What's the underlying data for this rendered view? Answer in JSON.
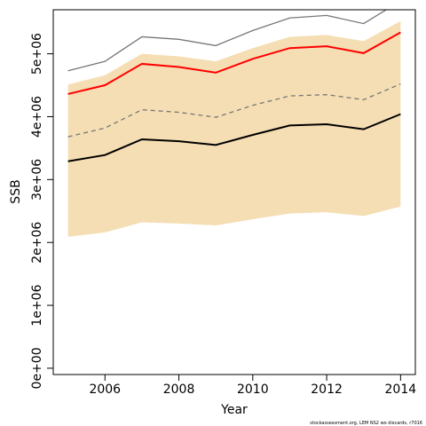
{
  "chart_data": {
    "type": "line",
    "title": "",
    "xlabel": "Year",
    "ylabel": "SSB",
    "xlim": [
      2004.6,
      2014.4
    ],
    "ylim": [
      -100000,
      5700000
    ],
    "x_ticks": [
      2006,
      2008,
      2010,
      2012,
      2014
    ],
    "x_tick_labels": [
      "2006",
      "2008",
      "2010",
      "2012",
      "2014"
    ],
    "y_ticks": [
      0,
      1000000,
      2000000,
      3000000,
      4000000,
      5000000
    ],
    "y_tick_labels": [
      "0e+00",
      "1e+06",
      "2e+06",
      "3e+06",
      "4e+06",
      "5e+06"
    ],
    "x": [
      2005,
      2006,
      2007,
      2008,
      2009,
      2010,
      2011,
      2012,
      2013,
      2014
    ],
    "band": {
      "color": "#f5deb3",
      "lower": [
        2090000,
        2160000,
        2320000,
        2300000,
        2270000,
        2370000,
        2460000,
        2480000,
        2420000,
        2570000
      ],
      "upper": [
        4510000,
        4660000,
        5000000,
        4960000,
        4880000,
        5090000,
        5270000,
        5300000,
        5200000,
        5520000
      ]
    },
    "series": [
      {
        "style": "solid",
        "color": "#000000",
        "width": 2,
        "values": [
          3290000,
          3390000,
          3640000,
          3610000,
          3550000,
          3710000,
          3860000,
          3880000,
          3800000,
          4040000
        ]
      },
      {
        "style": "dashed",
        "color": "#777777",
        "width": 1.3,
        "values": [
          3680000,
          3820000,
          4110000,
          4070000,
          3990000,
          4180000,
          4330000,
          4350000,
          4270000,
          4520000
        ]
      },
      {
        "style": "solid",
        "color": "#ff0000",
        "width": 2,
        "values": [
          4360000,
          4500000,
          4840000,
          4790000,
          4700000,
          4920000,
          5090000,
          5120000,
          5010000,
          5340000
        ]
      },
      {
        "style": "solid",
        "color": "#777777",
        "width": 1.3,
        "values": [
          4730000,
          4880000,
          5270000,
          5230000,
          5130000,
          5370000,
          5570000,
          5610000,
          5480000,
          5840000
        ]
      }
    ]
  },
  "footnote": "stockassessment.org, LEM NS2 wo discards, r7016"
}
